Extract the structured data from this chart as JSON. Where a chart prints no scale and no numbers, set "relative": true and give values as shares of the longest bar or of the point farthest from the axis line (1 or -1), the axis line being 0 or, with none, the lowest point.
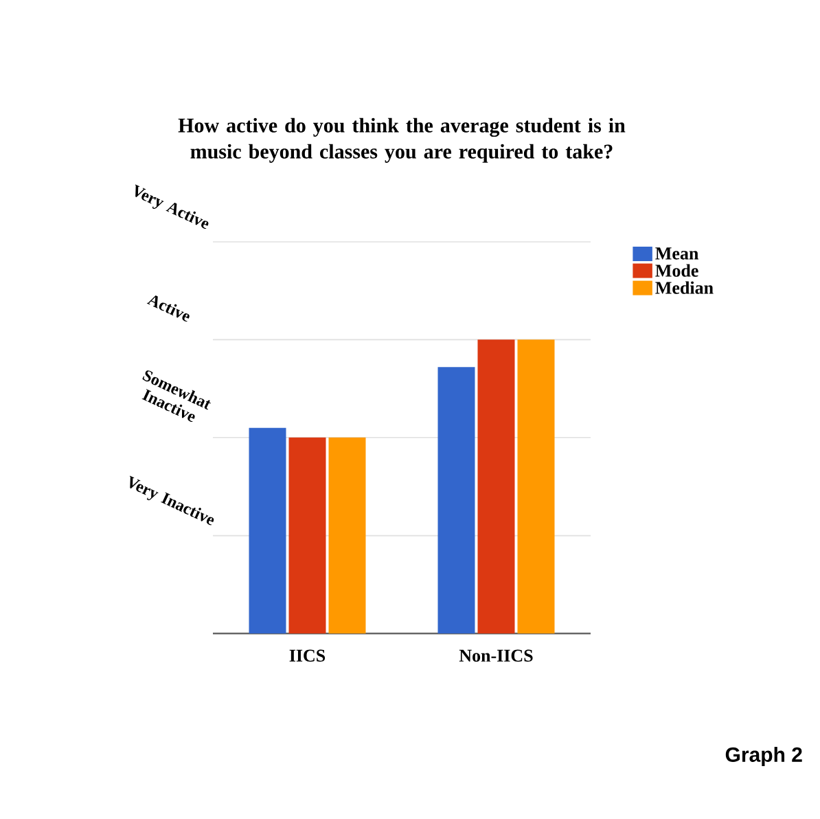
{
  "chart_data": {
    "type": "bar",
    "title": "How active do you think the average student is in music beyond classes you are required to take?",
    "categories": [
      "IICS",
      "Non-IICS"
    ],
    "relative": true,
    "series": [
      {
        "name": "Mean",
        "color": "#3366cc",
        "values": [
          0.7,
          0.907
        ]
      },
      {
        "name": "Mode",
        "color": "#dc3912",
        "values": [
          0.667,
          1
        ]
      },
      {
        "name": "Median",
        "color": "#ff9900",
        "values": [
          0.667,
          1
        ]
      }
    ],
    "ref_lines": [
      {
        "axis": "y",
        "value": 0.333,
        "label": "Very Inactive",
        "color": "#e0e0e0"
      },
      {
        "axis": "y",
        "value": 0.667,
        "label": "Somewhat Inactive",
        "color": "#e0e0e0"
      },
      {
        "axis": "y",
        "value": 1,
        "label": "Active",
        "color": "#e0e0e0"
      },
      {
        "axis": "y",
        "value": 1.333,
        "label": "Very Active",
        "color": "#e0e0e0"
      }
    ],
    "annotations": [
      "Graph 2"
    ],
    "legend": "top right"
  }
}
